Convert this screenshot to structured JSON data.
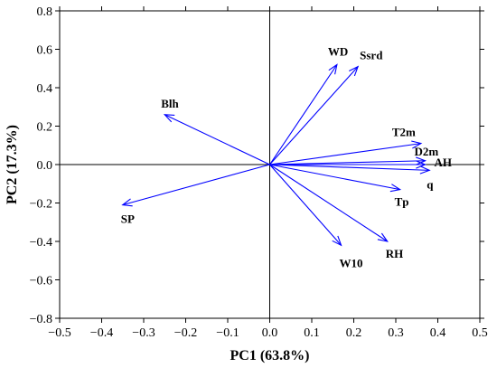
{
  "chart_data": {
    "type": "scatter",
    "subtype": "pca-biplot",
    "xlabel": "PC1 (63.8%)",
    "ylabel": "PC2 (17.3%)",
    "xlim": [
      -0.5,
      0.5
    ],
    "ylim": [
      -0.8,
      0.8
    ],
    "xticks": [
      -0.5,
      -0.4,
      -0.3,
      -0.2,
      -0.1,
      0.0,
      0.1,
      0.2,
      0.3,
      0.4,
      0.5
    ],
    "xtick_labels": [
      "−0.5",
      "−0.4",
      "−0.3",
      "−0.2",
      "−0.1",
      "0.0",
      "0.1",
      "0.2",
      "0.3",
      "0.4",
      "0.5"
    ],
    "yticks": [
      -0.8,
      -0.6,
      -0.4,
      -0.2,
      0.0,
      0.2,
      0.4,
      0.6,
      0.8
    ],
    "ytick_labels": [
      "−0.8",
      "−0.6",
      "−0.4",
      "−0.2",
      "0.0",
      "0.2",
      "0.4",
      "0.6",
      "0.8"
    ],
    "grid": false,
    "arrow_color": "#0000ff",
    "vectors": [
      {
        "label": "WD",
        "x": 0.16,
        "y": 0.52
      },
      {
        "label": "Ssrd",
        "x": 0.21,
        "y": 0.51
      },
      {
        "label": "Blh",
        "x": -0.25,
        "y": 0.26
      },
      {
        "label": "T2m",
        "x": 0.36,
        "y": 0.11
      },
      {
        "label": "D2m",
        "x": 0.37,
        "y": 0.02
      },
      {
        "label": "AH",
        "x": 0.37,
        "y": 0.0
      },
      {
        "label": "q",
        "x": 0.38,
        "y": -0.03
      },
      {
        "label": "Tp",
        "x": 0.31,
        "y": -0.13
      },
      {
        "label": "RH",
        "x": 0.28,
        "y": -0.4
      },
      {
        "label": "W10",
        "x": 0.17,
        "y": -0.42
      },
      {
        "label": "SP",
        "x": -0.35,
        "y": -0.21
      }
    ]
  }
}
